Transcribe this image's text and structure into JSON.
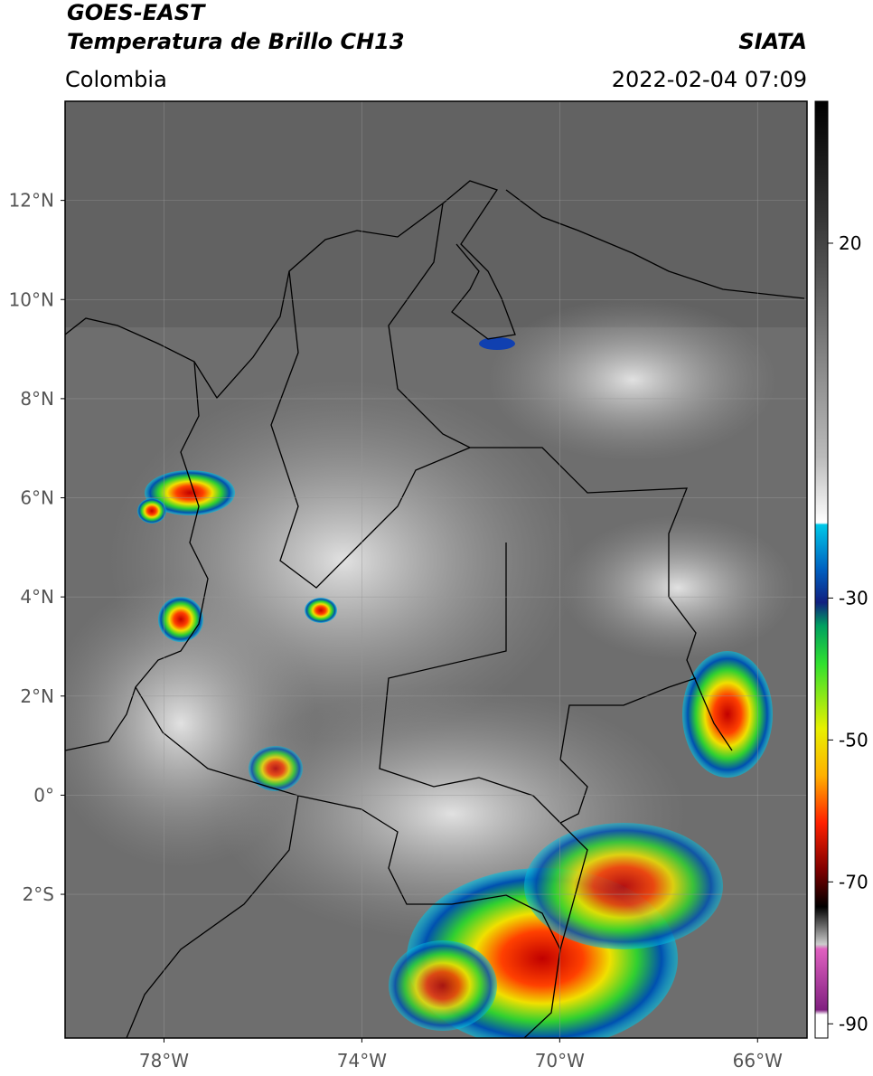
{
  "header": {
    "title": "GOES-EAST",
    "subtitle": "Temperatura de Brillo CH13",
    "region": "Colombia",
    "source": "SIATA",
    "datetime": "2022-02-04 07:09"
  },
  "map": {
    "lat_lim": [
      -4.9,
      14
    ],
    "lon_lim": [
      -80,
      -65
    ],
    "lat_ticks": [
      {
        "value": 12,
        "label": "12°N"
      },
      {
        "value": 10,
        "label": "10°N"
      },
      {
        "value": 8,
        "label": "8°N"
      },
      {
        "value": 6,
        "label": "6°N"
      },
      {
        "value": 4,
        "label": "4°N"
      },
      {
        "value": 2,
        "label": "2°N"
      },
      {
        "value": 0,
        "label": "0°"
      },
      {
        "value": -2,
        "label": "2°S"
      }
    ],
    "lon_ticks": [
      {
        "value": -78,
        "label": "78°W"
      },
      {
        "value": -74,
        "label": "74°W"
      },
      {
        "value": -70,
        "label": "70°W"
      },
      {
        "value": -66,
        "label": "66°W"
      }
    ]
  },
  "colorbar": {
    "lim": [
      -92,
      40
    ],
    "ticks": [
      20,
      -30,
      -50,
      -70,
      -90
    ]
  }
}
